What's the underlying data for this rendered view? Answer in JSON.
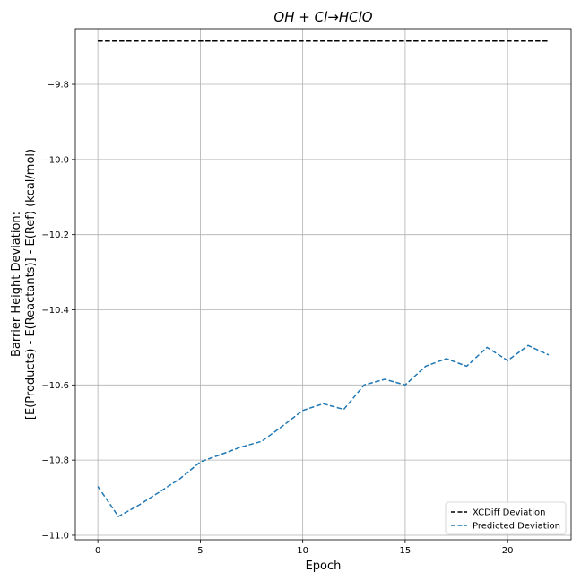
{
  "chart_data": {
    "type": "line",
    "title": "OH + Cl→HClO",
    "xlabel": "Epoch",
    "ylabel_lines": [
      "Barrier Height Deviation:",
      "[E(Products) - E(Reactants)] - E(Ref) (kcal/mol)"
    ],
    "xlim": [
      -1.1,
      23.1
    ],
    "ylim": [
      -11.012,
      -9.652
    ],
    "xticks": [
      0,
      5,
      10,
      15,
      20
    ],
    "yticks": [
      -11.0,
      -10.8,
      -10.6,
      -10.4,
      -10.2,
      -10.0,
      -9.8
    ],
    "ytick_labels": [
      "−11.0",
      "−10.8",
      "−10.6",
      "−10.4",
      "−10.2",
      "−10.0",
      "−9.8"
    ],
    "grid": true,
    "legend_position": "lower-right",
    "series": [
      {
        "name": "XCDiff Deviation",
        "color": "#000000",
        "style": "dashed",
        "x": [
          0,
          22
        ],
        "y": [
          -9.685,
          -9.685
        ]
      },
      {
        "name": "Predicted Deviation",
        "color": "#1f77b4",
        "style": "dashed",
        "x": [
          0,
          1,
          2,
          3,
          4,
          5,
          6,
          7,
          8,
          9,
          10,
          11,
          12,
          13,
          14,
          15,
          16,
          17,
          18,
          19,
          20,
          21,
          22
        ],
        "y": [
          -10.87,
          -10.95,
          -10.92,
          -10.885,
          -10.85,
          -10.805,
          -10.785,
          -10.765,
          -10.75,
          -10.71,
          -10.668,
          -10.65,
          -10.665,
          -10.6,
          -10.585,
          -10.6,
          -10.55,
          -10.53,
          -10.55,
          -10.5,
          -10.535,
          -10.495,
          -10.52
        ]
      }
    ]
  }
}
